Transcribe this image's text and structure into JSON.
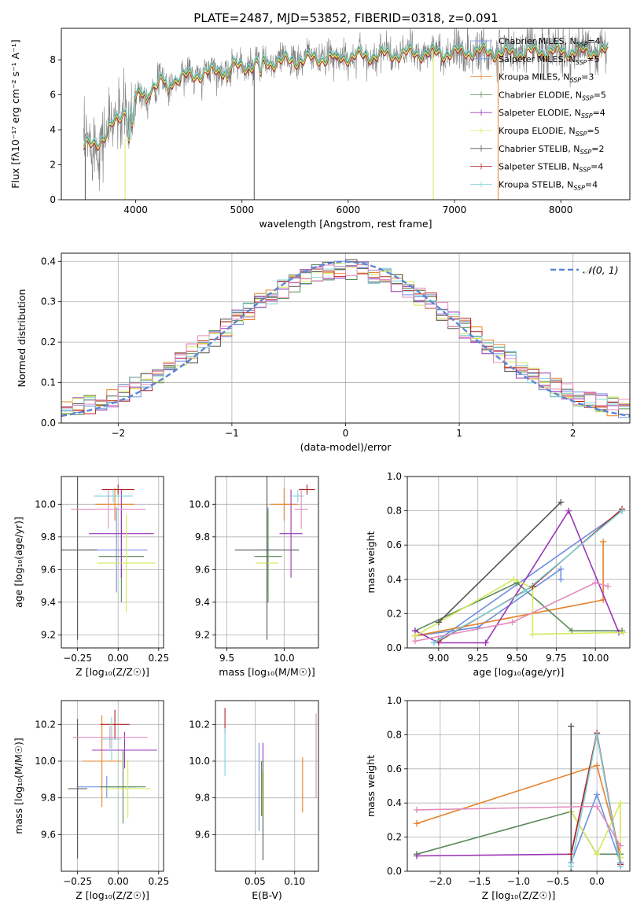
{
  "figure_title": "PLATE=2487, MJD=53852, FIBERID=0318, z=0.091",
  "colors": {
    "chabrier_miles": "#6f8fe0",
    "salpeter_miles": "#6f8fe0",
    "kroupa_miles": "#e5832a",
    "chabrier_elodie": "#5a8a5a",
    "salpeter_elodie": "#9a35b5",
    "kroupa_elodie": "#d6e85a",
    "chabrier_stelib": "#555555",
    "salpeter_stelib": "#b22222",
    "kroupa_stelib": "#7dd3d8",
    "gaussian": "#5b84d6",
    "pink": "#e28bbd",
    "grid": "#b0b0b0"
  },
  "chart_data": [
    {
      "id": "spectrum",
      "type": "line",
      "xlabel": "wavelength [Angstrom, rest frame]",
      "ylabel": "Flux [fλ10⁻¹⁷ erg cm⁻² s⁻¹ A⁻¹]",
      "xlim": [
        3300,
        8650
      ],
      "ylim": [
        0,
        9.8
      ],
      "xticks": [
        4000,
        5000,
        6000,
        7000,
        8000
      ],
      "yticks": [
        0,
        2,
        4,
        6,
        8
      ],
      "grid": false,
      "legend_position": "right",
      "legend": [
        "Chabrier MILES, N_SSP=4",
        "Salpeter MILES, N_SSP=5",
        "Kroupa MILES, N_SSP=3",
        "Chabrier ELODIE, N_SSP=5",
        "Salpeter ELODIE, N_SSP=4",
        "Kroupa ELODIE, N_SSP=5",
        "Chabrier STELIB, N_SSP=2",
        "Salpeter STELIB, N_SSP=4",
        "Kroupa STELIB, N_SSP=4"
      ],
      "continuum": {
        "x": [
          3500,
          3600,
          3700,
          3800,
          3900,
          4000,
          4100,
          4200,
          4300,
          4500,
          4700,
          4900,
          5100,
          5300,
          5500,
          5700,
          6000,
          6300,
          6600,
          6900,
          7200,
          7500,
          7800,
          8100,
          8400
        ],
        "y": [
          3.0,
          3.2,
          3.6,
          4.4,
          5.2,
          5.8,
          6.3,
          6.6,
          6.8,
          7.1,
          7.3,
          7.6,
          7.7,
          7.9,
          8.0,
          8.1,
          8.2,
          8.3,
          8.4,
          8.4,
          8.5,
          8.4,
          8.5,
          8.5,
          8.5
        ]
      }
    },
    {
      "id": "residuals",
      "type": "histogram",
      "xlabel": "(data-model)/error",
      "ylabel": "Normed distribution",
      "xlim": [
        -2.5,
        2.5
      ],
      "ylim": [
        0,
        0.42
      ],
      "xticks": [
        -2,
        -1,
        0,
        1,
        2
      ],
      "yticks": [
        0.0,
        0.1,
        0.2,
        0.3,
        0.4
      ],
      "grid": true,
      "legend_position": "top-right",
      "legend": [
        "𝒩(0, 1)"
      ],
      "bin_width": 0.1
    },
    {
      "id": "age_vs_Z",
      "type": "errorbar",
      "xlabel": "Z [log₁₀(Z/Z☉)]",
      "ylabel": "age  [log₁₀(age/yr)]",
      "xlim": [
        -0.35,
        0.28
      ],
      "ylim": [
        9.12,
        10.17
      ],
      "xticks": [
        -0.25,
        0.0,
        0.25
      ],
      "yticks": [
        9.2,
        9.4,
        9.6,
        9.8,
        10.0
      ],
      "grid": true,
      "points": [
        {
          "x": -0.01,
          "y": 9.72,
          "xerr": 0.19,
          "yerr": 0.26,
          "c": "chabrier_miles"
        },
        {
          "x": -0.02,
          "y": 10.0,
          "xerr": 0.12,
          "yerr": 0.1,
          "c": "kroupa_miles"
        },
        {
          "x": 0.02,
          "y": 9.68,
          "xerr": 0.14,
          "yerr": 0.28,
          "c": "chabrier_elodie"
        },
        {
          "x": 0.02,
          "y": 9.82,
          "xerr": 0.2,
          "yerr": 0.27,
          "c": "salpeter_elodie"
        },
        {
          "x": 0.05,
          "y": 9.64,
          "xerr": 0.18,
          "yerr": 0.3,
          "c": "kroupa_elodie"
        },
        {
          "x": -0.25,
          "y": 9.72,
          "xerr": 0.12,
          "yerr": 0.55,
          "c": "chabrier_stelib"
        },
        {
          "x": 0.0,
          "y": 10.09,
          "xerr": 0.1,
          "yerr": 0.03,
          "c": "salpeter_stelib"
        },
        {
          "x": -0.03,
          "y": 10.05,
          "xerr": 0.12,
          "yerr": 0.04,
          "c": "kroupa_stelib"
        },
        {
          "x": -0.06,
          "y": 9.97,
          "xerr": 0.23,
          "yerr": 0.12,
          "c": "pink"
        }
      ]
    },
    {
      "id": "age_vs_mass",
      "type": "errorbar",
      "xlabel": "mass [log₁₀(M/M☉)]",
      "ylabel": "",
      "xlim": [
        9.4,
        10.3
      ],
      "ylim": [
        9.12,
        10.17
      ],
      "xticks": [
        9.5,
        10.0
      ],
      "yticks": [
        9.2,
        9.4,
        9.6,
        9.8,
        10.0
      ],
      "grid": true,
      "points": [
        {
          "x": 9.86,
          "y": 9.72,
          "xerr": 0.06,
          "yerr": 0.26,
          "c": "chabrier_miles"
        },
        {
          "x": 10.0,
          "y": 10.0,
          "xerr": 0.12,
          "yerr": 0.1,
          "c": "kroupa_miles"
        },
        {
          "x": 9.86,
          "y": 9.68,
          "xerr": 0.12,
          "yerr": 0.28,
          "c": "chabrier_elodie"
        },
        {
          "x": 10.06,
          "y": 9.82,
          "xerr": 0.1,
          "yerr": 0.27,
          "c": "salpeter_elodie"
        },
        {
          "x": 9.85,
          "y": 9.64,
          "xerr": 0.1,
          "yerr": 0.3,
          "c": "kroupa_elodie"
        },
        {
          "x": 9.85,
          "y": 9.72,
          "xerr": 0.28,
          "yerr": 0.55,
          "c": "chabrier_stelib"
        },
        {
          "x": 10.2,
          "y": 10.09,
          "xerr": 0.07,
          "yerr": 0.03,
          "c": "salpeter_stelib"
        },
        {
          "x": 10.12,
          "y": 10.05,
          "xerr": 0.05,
          "yerr": 0.04,
          "c": "kroupa_stelib"
        },
        {
          "x": 10.15,
          "y": 9.97,
          "xerr": 0.06,
          "yerr": 0.12,
          "c": "pink"
        }
      ]
    },
    {
      "id": "weight_vs_age",
      "type": "line",
      "xlabel": "age  [log₁₀(age/yr)]",
      "ylabel": "mass weight",
      "xlim": [
        8.8,
        10.22
      ],
      "ylim": [
        0,
        1.0
      ],
      "xticks": [
        9.0,
        9.25,
        9.5,
        9.75,
        10.0
      ],
      "yticks": [
        0.0,
        0.2,
        0.4,
        0.6,
        0.8,
        1.0
      ],
      "grid": true,
      "series": [
        {
          "c": "chabrier_miles",
          "x": [
            8.85,
            9.25,
            9.78,
            9.78
          ],
          "y": [
            0.07,
            0.12,
            0.46,
            0.4
          ]
        },
        {
          "c": "salpeter_miles",
          "x": [
            8.97,
            10.17
          ],
          "y": [
            0.03,
            0.8
          ]
        },
        {
          "c": "kroupa_miles",
          "x": [
            8.85,
            10.05,
            10.05
          ],
          "y": [
            0.07,
            0.28,
            0.62
          ]
        },
        {
          "c": "chabrier_elodie",
          "x": [
            8.85,
            9.5,
            9.85,
            10.17
          ],
          "y": [
            0.1,
            0.38,
            0.1,
            0.1
          ]
        },
        {
          "c": "salpeter_elodie",
          "x": [
            8.85,
            9.0,
            9.3,
            9.83,
            10.15
          ],
          "y": [
            0.1,
            0.03,
            0.03,
            0.8,
            0.09
          ]
        },
        {
          "c": "kroupa_elodie",
          "x": [
            8.85,
            9.48,
            9.6,
            9.6,
            10.18
          ],
          "y": [
            0.07,
            0.4,
            0.35,
            0.08,
            0.09
          ]
        },
        {
          "c": "chabrier_stelib",
          "x": [
            9.0,
            9.78
          ],
          "y": [
            0.15,
            0.85
          ]
        },
        {
          "c": "salpeter_stelib",
          "x": [
            9.0,
            9.6,
            10.17
          ],
          "y": [
            0.04,
            0.36,
            0.81
          ]
        },
        {
          "c": "kroupa_stelib",
          "x": [
            8.97,
            9.55,
            10.17
          ],
          "y": [
            0.03,
            0.33,
            0.8
          ]
        },
        {
          "c": "pink",
          "x": [
            8.85,
            9.47,
            10.0,
            10.08
          ],
          "y": [
            0.04,
            0.15,
            0.38,
            0.36
          ]
        }
      ]
    },
    {
      "id": "mass_vs_Z",
      "type": "errorbar",
      "xlabel": "Z [log₁₀(Z/Z☉)]",
      "ylabel": "mass [log₁₀(M/M☉)]",
      "xlim": [
        -0.35,
        0.28
      ],
      "ylim": [
        9.4,
        10.33
      ],
      "xticks": [
        -0.25,
        0.0,
        0.25
      ],
      "yticks": [
        9.6,
        9.8,
        10.0,
        10.2
      ],
      "grid": true,
      "points": [
        {
          "x": -0.07,
          "y": 9.86,
          "xerr": 0.18,
          "yerr": 0.06,
          "c": "chabrier_miles"
        },
        {
          "x": -0.1,
          "y": 10.0,
          "xerr": 0.12,
          "yerr": 0.25,
          "c": "kroupa_miles"
        },
        {
          "x": 0.03,
          "y": 9.86,
          "xerr": 0.14,
          "yerr": 0.2,
          "c": "chabrier_elodie"
        },
        {
          "x": 0.04,
          "y": 10.06,
          "xerr": 0.2,
          "yerr": 0.1,
          "c": "salpeter_elodie"
        },
        {
          "x": 0.06,
          "y": 9.85,
          "xerr": 0.14,
          "yerr": 0.16,
          "c": "kroupa_elodie"
        },
        {
          "x": -0.25,
          "y": 9.85,
          "xerr": 0.06,
          "yerr": 0.38,
          "c": "chabrier_stelib"
        },
        {
          "x": -0.02,
          "y": 10.2,
          "xerr": 0.09,
          "yerr": 0.08,
          "c": "salpeter_stelib"
        },
        {
          "x": -0.04,
          "y": 10.12,
          "xerr": 0.06,
          "yerr": 0.12,
          "c": "kroupa_stelib"
        },
        {
          "x": -0.05,
          "y": 10.13,
          "xerr": 0.23,
          "yerr": 0.06,
          "c": "pink"
        }
      ]
    },
    {
      "id": "mass_vs_ebv",
      "type": "errorbar",
      "xlabel": "E(B-V)",
      "ylabel": "",
      "xlim": [
        0.0,
        0.13
      ],
      "ylim": [
        9.4,
        10.33
      ],
      "xticks": [
        0.05,
        0.1
      ],
      "yticks": [
        9.6,
        9.8,
        10.0,
        10.2
      ],
      "grid": true,
      "points": [
        {
          "x": 0.055,
          "y": 9.86,
          "xerr": 0,
          "yerr": 0.24,
          "c": "chabrier_miles"
        },
        {
          "x": 0.11,
          "y": 9.87,
          "xerr": 0,
          "yerr": 0.15,
          "c": "kroupa_miles"
        },
        {
          "x": 0.058,
          "y": 9.85,
          "xerr": 0,
          "yerr": 0.15,
          "c": "chabrier_elodie"
        },
        {
          "x": 0.06,
          "y": 9.92,
          "xerr": 0,
          "yerr": 0.18,
          "c": "salpeter_elodie"
        },
        {
          "x": 0.059,
          "y": 9.82,
          "xerr": 0,
          "yerr": 0.12,
          "c": "kroupa_elodie"
        },
        {
          "x": 0.06,
          "y": 9.73,
          "xerr": 0,
          "yerr": 0.27,
          "c": "chabrier_stelib"
        },
        {
          "x": 0.012,
          "y": 10.22,
          "xerr": 0,
          "yerr": 0.07,
          "c": "salpeter_stelib"
        },
        {
          "x": 0.012,
          "y": 10.05,
          "xerr": 0,
          "yerr": 0.13,
          "c": "kroupa_stelib"
        },
        {
          "x": 0.127,
          "y": 10.03,
          "xerr": 0,
          "yerr": 0.23,
          "c": "pink"
        }
      ]
    },
    {
      "id": "weight_vs_Z",
      "type": "line",
      "xlabel": "Z [log₁₀(Z/Z☉)]",
      "ylabel": "mass weight",
      "xlim": [
        -2.42,
        0.42
      ],
      "ylim": [
        0,
        1.0
      ],
      "xticks": [
        -2.0,
        -1.5,
        -1.0,
        -0.5,
        0.0
      ],
      "yticks": [
        0.0,
        0.2,
        0.4,
        0.6,
        0.8,
        1.0
      ],
      "grid": true,
      "series": [
        {
          "c": "chabrier_miles",
          "x": [
            -0.33,
            0.0,
            0.3
          ],
          "y": [
            0.05,
            0.45,
            0.05
          ]
        },
        {
          "c": "kroupa_miles",
          "x": [
            -2.3,
            0.0,
            0.3
          ],
          "y": [
            0.28,
            0.62,
            0.1
          ]
        },
        {
          "c": "chabrier_elodie",
          "x": [
            -2.3,
            -0.33,
            0.0,
            0.3
          ],
          "y": [
            0.1,
            0.35,
            0.1,
            0.1
          ]
        },
        {
          "c": "salpeter_elodie",
          "x": [
            -2.3,
            -0.33,
            0.0,
            0.3
          ],
          "y": [
            0.09,
            0.1,
            0.8,
            0.03
          ]
        },
        {
          "c": "kroupa_elodie",
          "x": [
            -0.33,
            0.0,
            0.3,
            0.3
          ],
          "y": [
            0.35,
            0.1,
            0.4,
            0.08
          ]
        },
        {
          "c": "chabrier_stelib",
          "x": [
            -0.33,
            -0.33
          ],
          "y": [
            0.0,
            0.85
          ]
        },
        {
          "c": "salpeter_stelib",
          "x": [
            -0.33,
            0.0,
            0.3
          ],
          "y": [
            0.1,
            0.81,
            0.04
          ]
        },
        {
          "c": "kroupa_stelib",
          "x": [
            -0.33,
            0.0,
            0.3
          ],
          "y": [
            0.03,
            0.8,
            0.03
          ]
        },
        {
          "c": "pink",
          "x": [
            -2.3,
            0.0,
            0.3
          ],
          "y": [
            0.36,
            0.38,
            0.15
          ]
        }
      ]
    }
  ]
}
